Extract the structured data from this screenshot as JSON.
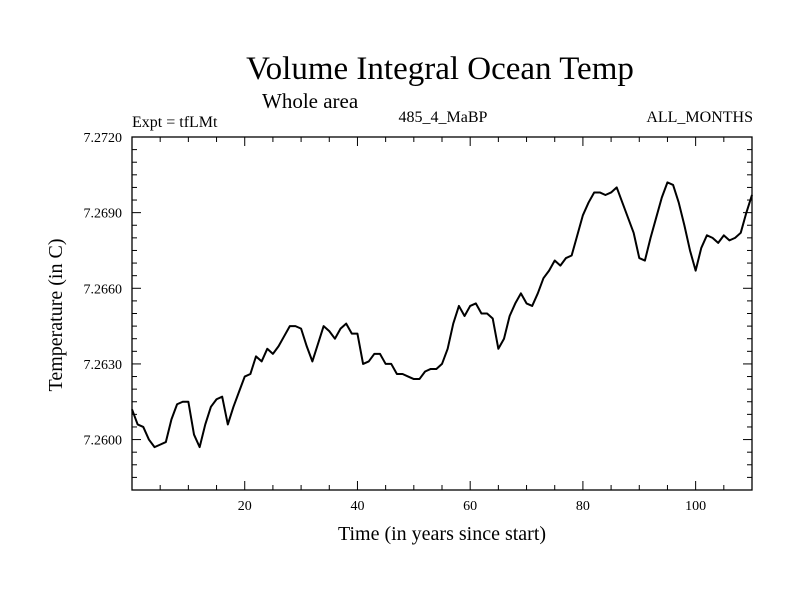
{
  "chart_data": {
    "type": "line",
    "title": "Volume Integral Ocean Temp",
    "subtitle": "Whole area",
    "left_label": "Expt = tfLMt",
    "center_label": "485_4_MaBP",
    "right_label": "ALL_MONTHS",
    "xlabel": "Time (in years since start)",
    "ylabel": "Temperature (in C)",
    "xlim": [
      0,
      110
    ],
    "ylim": [
      7.258,
      7.272
    ],
    "x_ticks": [
      20,
      40,
      60,
      80,
      100
    ],
    "x_tick_labels": [
      "20",
      "40",
      "60",
      "80",
      "100"
    ],
    "y_ticks": [
      7.26,
      7.263,
      7.266,
      7.269,
      7.272
    ],
    "y_tick_labels": [
      "7.2600",
      "7.2630",
      "7.2660",
      "7.2690",
      "7.2720"
    ],
    "x_minor_step": 5,
    "y_minor_step": 0.0005,
    "grid": false,
    "series": [
      {
        "name": "Volume integral ocean temperature",
        "color": "#000000",
        "x": [
          0,
          1,
          2,
          3,
          4,
          5,
          6,
          7,
          8,
          9,
          10,
          11,
          12,
          13,
          14,
          15,
          16,
          17,
          18,
          19,
          20,
          21,
          22,
          23,
          24,
          25,
          26,
          27,
          28,
          29,
          30,
          31,
          32,
          33,
          34,
          35,
          36,
          37,
          38,
          39,
          40,
          41,
          42,
          43,
          44,
          45,
          46,
          47,
          48,
          49,
          50,
          51,
          52,
          53,
          54,
          55,
          56,
          57,
          58,
          59,
          60,
          61,
          62,
          63,
          64,
          65,
          66,
          67,
          68,
          69,
          70,
          71,
          72,
          73,
          74,
          75,
          76,
          77,
          78,
          79,
          80,
          81,
          82,
          83,
          84,
          85,
          86,
          87,
          88,
          89,
          90,
          91,
          92,
          93,
          94,
          95,
          96,
          97,
          98,
          99,
          100,
          101,
          102,
          103,
          104,
          105,
          106,
          107,
          108,
          109,
          110
        ],
        "values": [
          7.2612,
          7.2606,
          7.2605,
          7.26,
          7.2597,
          7.2598,
          7.2599,
          7.2608,
          7.2614,
          7.2615,
          7.2615,
          7.2602,
          7.2597,
          7.2606,
          7.2613,
          7.2616,
          7.2617,
          7.2606,
          7.2613,
          7.2619,
          7.2625,
          7.2626,
          7.2633,
          7.2631,
          7.2636,
          7.2634,
          7.2637,
          7.2641,
          7.2645,
          7.2645,
          7.2644,
          7.2637,
          7.2631,
          7.2638,
          7.2645,
          7.2643,
          7.264,
          7.2644,
          7.2646,
          7.2642,
          7.2642,
          7.263,
          7.2631,
          7.2634,
          7.2634,
          7.263,
          7.263,
          7.2626,
          7.2626,
          7.2625,
          7.2624,
          7.2624,
          7.2627,
          7.2628,
          7.2628,
          7.263,
          7.2636,
          7.2646,
          7.2653,
          7.2649,
          7.2653,
          7.2654,
          7.265,
          7.265,
          7.2648,
          7.2636,
          7.264,
          7.2649,
          7.2654,
          7.2658,
          7.2654,
          7.2653,
          7.2658,
          7.2664,
          7.2667,
          7.2671,
          7.2669,
          7.2672,
          7.2673,
          7.2681,
          7.2689,
          7.2694,
          7.2698,
          7.2698,
          7.2697,
          7.2698,
          7.27,
          7.2694,
          7.2688,
          7.2682,
          7.2672,
          7.2671,
          7.268,
          7.2688,
          7.2696,
          7.2702,
          7.2701,
          7.2694,
          7.2685,
          7.2675,
          7.2667,
          7.2676,
          7.2681,
          7.268,
          7.2678,
          7.2681,
          7.2679,
          7.268,
          7.2682,
          7.269,
          7.2697
        ]
      }
    ]
  }
}
